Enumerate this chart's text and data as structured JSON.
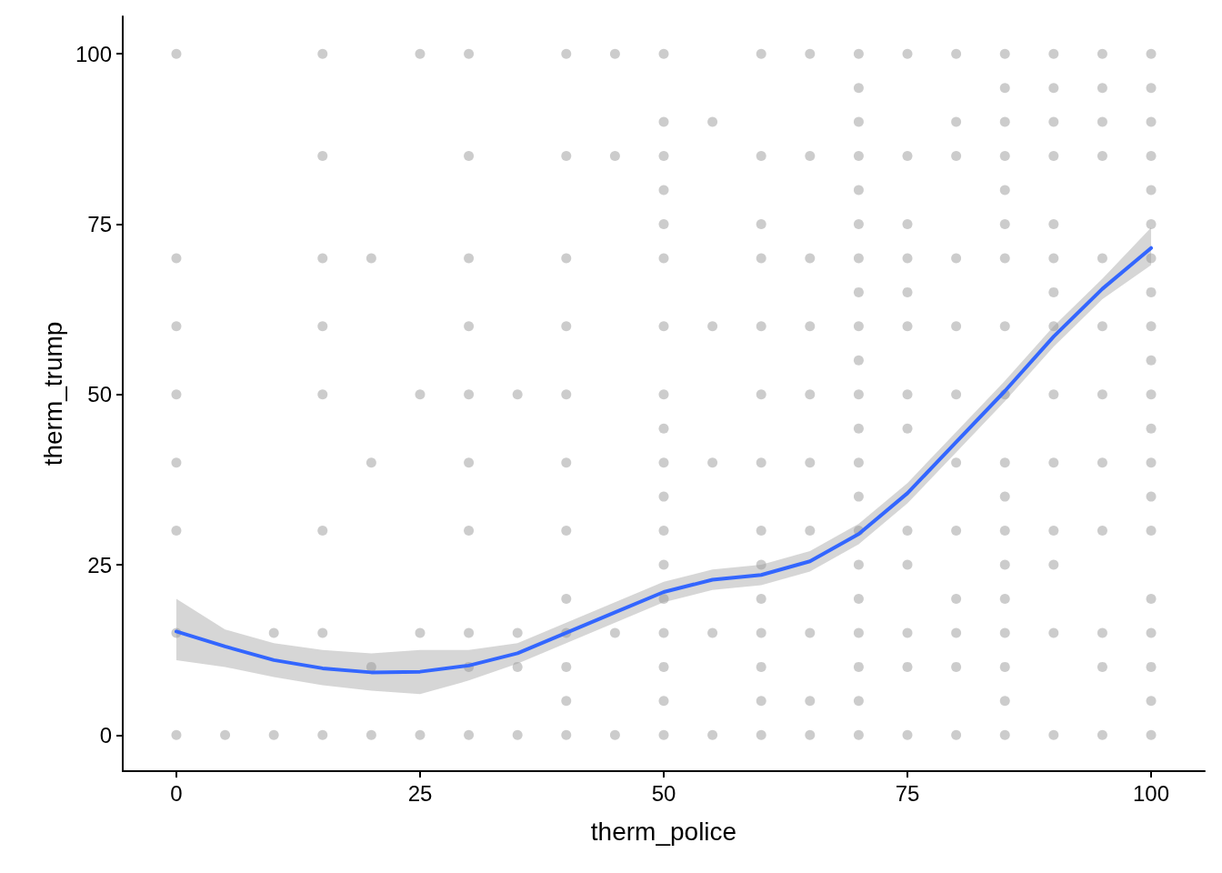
{
  "chart_data": {
    "type": "scatter",
    "xlabel": "therm_police",
    "ylabel": "therm_trump",
    "xlim": [
      -5.5,
      105.5
    ],
    "ylim": [
      -5.3,
      105.5
    ],
    "xticks": [
      0,
      25,
      50,
      75,
      100
    ],
    "yticks": [
      0,
      25,
      50,
      75,
      100
    ],
    "grid": false,
    "series": [
      {
        "color": "#000000",
        "marker": "circle",
        "x": [
          0,
          0,
          0,
          0,
          0,
          0,
          0,
          0,
          5,
          10,
          10,
          15,
          15,
          15,
          15,
          15,
          15,
          15,
          15,
          20,
          20,
          20,
          20,
          25,
          25,
          25,
          25,
          30,
          30,
          30,
          30,
          30,
          30,
          30,
          30,
          30,
          30,
          35,
          35,
          35,
          35,
          40,
          40,
          40,
          40,
          40,
          40,
          40,
          40,
          40,
          40,
          40,
          40,
          45,
          45,
          45,
          45,
          50,
          50,
          50,
          50,
          50,
          50,
          50,
          50,
          50,
          50,
          50,
          50,
          50,
          50,
          50,
          50,
          50,
          50,
          55,
          55,
          55,
          55,
          55,
          60,
          60,
          60,
          60,
          60,
          60,
          60,
          60,
          60,
          60,
          60,
          60,
          60,
          60,
          65,
          65,
          65,
          65,
          65,
          65,
          65,
          65,
          65,
          65,
          70,
          70,
          70,
          70,
          70,
          70,
          70,
          70,
          70,
          70,
          70,
          70,
          70,
          70,
          70,
          70,
          70,
          70,
          70,
          70,
          70,
          75,
          75,
          75,
          75,
          75,
          75,
          75,
          75,
          75,
          75,
          75,
          75,
          75,
          80,
          80,
          80,
          80,
          80,
          80,
          80,
          80,
          80,
          80,
          80,
          80,
          85,
          85,
          85,
          85,
          85,
          85,
          85,
          85,
          85,
          85,
          85,
          85,
          85,
          85,
          85,
          85,
          85,
          85,
          90,
          90,
          90,
          90,
          90,
          90,
          90,
          90,
          90,
          90,
          90,
          90,
          90,
          90,
          95,
          95,
          95,
          95,
          95,
          95,
          95,
          95,
          95,
          95,
          95,
          95,
          100,
          100,
          100,
          100,
          100,
          100,
          100,
          100,
          100,
          100,
          100,
          100,
          100,
          100,
          100,
          100,
          100,
          100,
          100,
          100
        ],
        "values": [
          0,
          15,
          30,
          40,
          50,
          60,
          70,
          100,
          0,
          0,
          15,
          0,
          15,
          30,
          50,
          60,
          70,
          85,
          100,
          0,
          10,
          40,
          70,
          0,
          15,
          50,
          100,
          0,
          10,
          15,
          30,
          40,
          50,
          60,
          70,
          85,
          100,
          0,
          10,
          15,
          50,
          0,
          5,
          10,
          15,
          20,
          30,
          40,
          50,
          60,
          70,
          85,
          100,
          0,
          15,
          85,
          100,
          0,
          5,
          10,
          15,
          20,
          25,
          30,
          35,
          40,
          45,
          50,
          60,
          70,
          75,
          80,
          85,
          90,
          100,
          0,
          15,
          40,
          60,
          90,
          0,
          5,
          10,
          15,
          20,
          25,
          30,
          40,
          50,
          60,
          70,
          75,
          85,
          100,
          0,
          5,
          15,
          30,
          40,
          50,
          60,
          70,
          85,
          100,
          0,
          5,
          10,
          15,
          20,
          25,
          30,
          35,
          40,
          45,
          50,
          55,
          60,
          65,
          70,
          75,
          80,
          85,
          90,
          95,
          100,
          0,
          10,
          15,
          25,
          30,
          45,
          50,
          60,
          65,
          70,
          75,
          85,
          100,
          0,
          10,
          15,
          20,
          30,
          40,
          50,
          60,
          70,
          85,
          90,
          100,
          0,
          5,
          10,
          15,
          20,
          25,
          30,
          35,
          40,
          50,
          60,
          70,
          75,
          80,
          85,
          90,
          95,
          100,
          0,
          15,
          25,
          30,
          40,
          50,
          60,
          65,
          70,
          75,
          85,
          90,
          95,
          100,
          0,
          10,
          15,
          30,
          40,
          50,
          60,
          70,
          85,
          90,
          95,
          100,
          0,
          5,
          10,
          15,
          20,
          30,
          35,
          40,
          45,
          50,
          55,
          60,
          65,
          70,
          75,
          80,
          85,
          90,
          95,
          100
        ]
      },
      {
        "type": "line",
        "color": "#3366ff",
        "marker": "none",
        "x": [
          0,
          5,
          10,
          15,
          20,
          25,
          30,
          35,
          40,
          45,
          50,
          55,
          60,
          65,
          70,
          75,
          80,
          85,
          90,
          95,
          100
        ],
        "values": [
          15.2,
          13,
          11,
          9.8,
          9.2,
          9.3,
          10.2,
          12,
          15,
          18,
          21,
          22.8,
          23.5,
          25.5,
          29.5,
          35.5,
          43,
          50.5,
          58.5,
          65.5,
          71.5
        ],
        "lower": [
          11,
          10,
          8.5,
          7.3,
          6.5,
          6,
          8,
          10.5,
          13.5,
          16.5,
          19.5,
          21.3,
          22,
          24,
          28,
          34,
          41.5,
          49,
          57,
          64,
          69
        ],
        "upper": [
          20,
          15.5,
          13.5,
          12.5,
          12,
          12.5,
          12.5,
          13.5,
          16.5,
          19.5,
          22.5,
          24.3,
          25,
          27,
          31,
          37,
          44.5,
          52,
          60,
          67,
          74.5
        ]
      }
    ]
  }
}
